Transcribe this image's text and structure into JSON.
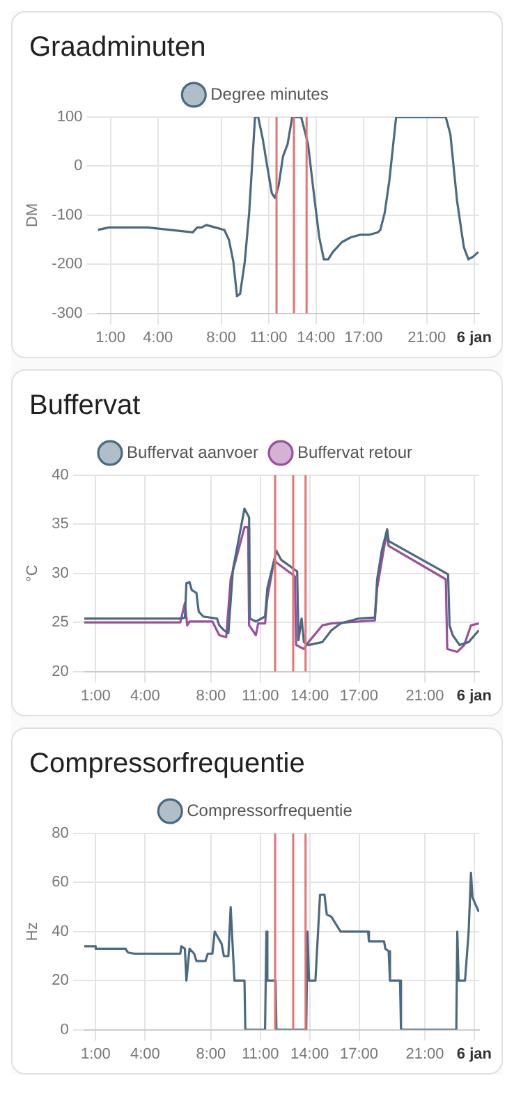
{
  "chart_data": [
    {
      "type": "line",
      "title": "Graadminuten",
      "ylabel": "DM",
      "legend": "top",
      "grid": true,
      "marker": "none",
      "line_style": "solid",
      "xlim": [
        0.2,
        24.3
      ],
      "xticks": [
        {
          "value": 1,
          "label": "1:00"
        },
        {
          "value": 4,
          "label": "4:00"
        },
        {
          "value": 8,
          "label": "8:00"
        },
        {
          "value": 11,
          "label": "11:00"
        },
        {
          "value": 14,
          "label": "14:00"
        },
        {
          "value": 17,
          "label": "17:00"
        },
        {
          "value": 21,
          "label": "21:00"
        },
        {
          "value": 24,
          "label": "6 jan"
        }
      ],
      "ylim": [
        -300,
        100
      ],
      "yticks": [
        -300,
        -200,
        -100,
        0,
        100
      ],
      "ref_lines": [
        {
          "axis": "x",
          "value": 11.5,
          "color": "#e57373"
        },
        {
          "axis": "x",
          "value": 12.6,
          "color": "#e57373"
        },
        {
          "axis": "x",
          "value": 13.4,
          "color": "#e57373"
        }
      ],
      "series": [
        {
          "name": "Degree minutes",
          "color": "#4a6a82",
          "x": [
            0.2,
            0.91,
            2.77,
            3.34,
            4.77,
            6.2,
            6.49,
            6.77,
            7.06,
            7.63,
            8.2,
            8.49,
            8.77,
            9.0,
            9.2,
            9.49,
            9.77,
            10.14,
            10.34,
            10.63,
            10.91,
            11.2,
            11.4,
            11.63,
            11.91,
            12.2,
            12.49,
            13.06,
            13.49,
            13.91,
            14.2,
            14.49,
            14.77,
            15.06,
            15.63,
            16.2,
            16.77,
            17.34,
            17.91,
            18.06,
            18.34,
            18.63,
            19.06,
            22.2,
            22.49,
            22.91,
            23.34,
            23.63,
            23.91,
            24.26
          ],
          "values": [
            -130,
            -125,
            -125,
            -125,
            -130,
            -135,
            -125,
            -125,
            -120,
            -125,
            -130,
            -150,
            -195,
            -265,
            -260,
            -195,
            -95,
            100,
            100,
            55,
            0,
            -55,
            -65,
            -40,
            20,
            45,
            100,
            100,
            45,
            -70,
            -145,
            -190,
            -190,
            -175,
            -155,
            -145,
            -140,
            -140,
            -135,
            -130,
            -95,
            -30,
            100,
            100,
            65,
            -70,
            -165,
            -190,
            -185,
            -175
          ]
        }
      ]
    },
    {
      "type": "line",
      "title": "Buffervat",
      "ylabel": "°C",
      "legend": "top",
      "grid": true,
      "marker": "none",
      "line_style": "solid",
      "xlim": [
        0.3,
        24.3
      ],
      "xticks": [
        {
          "value": 1,
          "label": "1:00"
        },
        {
          "value": 4,
          "label": "4:00"
        },
        {
          "value": 8,
          "label": "8:00"
        },
        {
          "value": 11,
          "label": "11:00"
        },
        {
          "value": 14,
          "label": "14:00"
        },
        {
          "value": 17,
          "label": "17:00"
        },
        {
          "value": 21,
          "label": "21:00"
        },
        {
          "value": 24,
          "label": "6 jan"
        }
      ],
      "ylim": [
        20,
        40
      ],
      "yticks": [
        20,
        25,
        30,
        35,
        40
      ],
      "ref_lines": [
        {
          "axis": "x",
          "value": 11.9,
          "color": "#e57373"
        },
        {
          "axis": "x",
          "value": 13.0,
          "color": "#e57373"
        },
        {
          "axis": "x",
          "value": 13.75,
          "color": "#e57373"
        }
      ],
      "series": [
        {
          "name": "Buffervat aanvoer",
          "color": "#4a6a82",
          "x": [
            0.3,
            6.14,
            6.42,
            6.51,
            6.7,
            6.84,
            7.12,
            7.26,
            7.54,
            8.37,
            8.51,
            8.79,
            9.06,
            9.34,
            10.04,
            10.32,
            10.37,
            10.73,
            11.29,
            11.43,
            11.98,
            12.26,
            13.24,
            13.32,
            13.51,
            13.65,
            13.93,
            14.77,
            15.32,
            15.88,
            16.99,
            17.96,
            18.1,
            18.38,
            18.71,
            18.8,
            22.41,
            22.5,
            22.69,
            23.11,
            23.66,
            24.28
          ],
          "values": [
            25.4,
            25.4,
            25.5,
            29,
            29.1,
            28.3,
            28,
            26.1,
            25.6,
            25.4,
            24.7,
            24.2,
            23.9,
            30.4,
            36.6,
            35.7,
            25.4,
            25.1,
            25.6,
            28.5,
            32.3,
            31.4,
            30.2,
            23.2,
            25.4,
            23,
            22.7,
            23,
            24.2,
            24.9,
            25.4,
            25.5,
            29.4,
            32.3,
            34.5,
            33.3,
            29.9,
            24.7,
            23.7,
            22.7,
            23,
            24.2
          ]
        },
        {
          "name": "Buffervat retour",
          "color": "#9b4f9e",
          "x": [
            0.3,
            6.14,
            6.42,
            6.56,
            6.7,
            8.09,
            8.51,
            8.93,
            9.2,
            10.04,
            10.26,
            10.32,
            10.45,
            10.73,
            10.87,
            11.29,
            11.43,
            11.85,
            11.98,
            13.1,
            13.18,
            13.65,
            13.93,
            14.77,
            15.32,
            16.99,
            17.96,
            18.1,
            18.66,
            18.8,
            22.27,
            22.36,
            22.97,
            23.39,
            23.8,
            24.28
          ],
          "values": [
            25,
            25,
            27,
            24.7,
            25.1,
            25.1,
            23.7,
            23.5,
            29.4,
            34.7,
            34.7,
            24.7,
            24.4,
            23.7,
            24.9,
            24.9,
            27.5,
            31.4,
            31.1,
            29.7,
            22.7,
            22.3,
            23,
            24.7,
            24.9,
            25.1,
            25.2,
            28.5,
            34,
            32.8,
            29.4,
            22.3,
            22,
            22.7,
            24.7,
            24.9
          ]
        }
      ]
    },
    {
      "type": "line",
      "title": "Compressorfrequentie",
      "ylabel": "Hz",
      "legend": "top",
      "grid": true,
      "marker": "none",
      "line_style": "solid",
      "xlim": [
        0.3,
        24.3
      ],
      "xticks": [
        {
          "value": 1,
          "label": "1:00"
        },
        {
          "value": 4,
          "label": "4:00"
        },
        {
          "value": 8,
          "label": "8:00"
        },
        {
          "value": 11,
          "label": "11:00"
        },
        {
          "value": 14,
          "label": "14:00"
        },
        {
          "value": 17,
          "label": "17:00"
        },
        {
          "value": 21,
          "label": "21:00"
        },
        {
          "value": 24,
          "label": "6 jan"
        }
      ],
      "ylim": [
        0,
        80
      ],
      "yticks": [
        0,
        20,
        40,
        60,
        80
      ],
      "ref_lines": [
        {
          "axis": "x",
          "value": 11.9,
          "color": "#e57373"
        },
        {
          "axis": "x",
          "value": 13.0,
          "color": "#e57373"
        },
        {
          "axis": "x",
          "value": 13.75,
          "color": "#e57373"
        }
      ],
      "series": [
        {
          "name": "Compressorfrequentie",
          "color": "#4a6a82",
          "x": [
            0.3,
            1.0,
            1.0,
            2.81,
            2.95,
            3.36,
            6.14,
            6.2,
            6.42,
            6.51,
            6.7,
            6.98,
            7.12,
            7.67,
            7.81,
            8.09,
            8.23,
            8.65,
            8.79,
            9.06,
            9.2,
            9.43,
            10.04,
            10.09,
            11.29,
            11.37,
            11.43,
            11.93,
            11.98,
            13.79,
            13.87,
            13.96,
            14.35,
            14.63,
            14.9,
            15.04,
            15.32,
            15.88,
            17.55,
            17.6,
            18.52,
            18.6,
            18.8,
            18.88,
            19.49,
            19.55,
            22.91,
            22.97,
            23.05,
            23.44,
            23.66,
            23.8,
            23.89,
            24.08,
            24.28
          ],
          "values": [
            34,
            34,
            33,
            33,
            31.5,
            31,
            31,
            34,
            33,
            20,
            33,
            31,
            28,
            28,
            31,
            31,
            40,
            35,
            30,
            30,
            50,
            20,
            20,
            0,
            0,
            40,
            20,
            20,
            0,
            0,
            40,
            20,
            20,
            55,
            55,
            47,
            46,
            40,
            40,
            36,
            36,
            33,
            32,
            20,
            20,
            0,
            0,
            40,
            20,
            20,
            40,
            64,
            54,
            51,
            48
          ]
        }
      ]
    }
  ]
}
